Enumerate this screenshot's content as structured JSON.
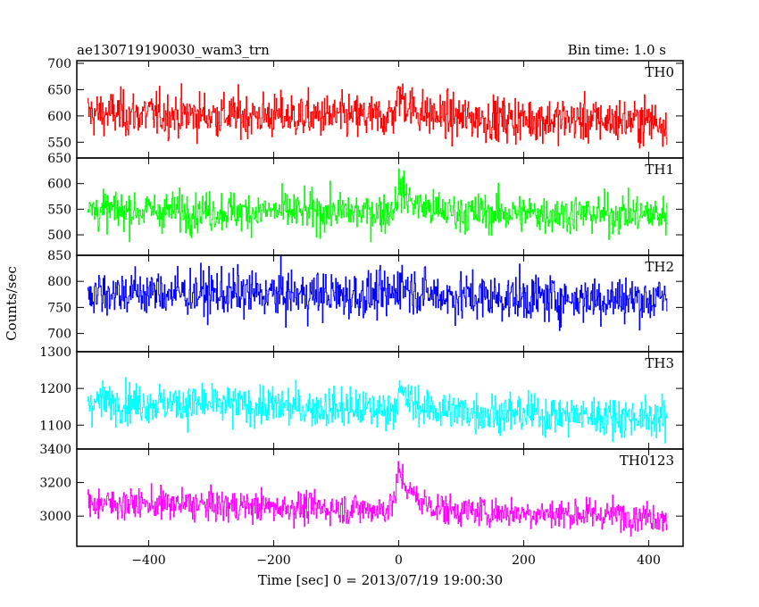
{
  "header": {
    "title": "ae130719190030_wam3_trn",
    "bin_time": "Bin time: 1.0 s"
  },
  "chart_data": {
    "type": "line",
    "title": "ae130719190030_wam3_trn",
    "subtitle": "Bin time: 1.0 s",
    "xlabel": "Time [sec] 0 = 2013/07/19 19:00:30",
    "ylabel": "Counts/sec",
    "xlim": [
      -515,
      455
    ],
    "x_ticks": [
      -400,
      -200,
      0,
      200,
      400
    ],
    "x_start": -498,
    "x_end": 430,
    "bin_size": 1.0,
    "burst_time": 0,
    "panels": [
      {
        "name": "TH0",
        "color": "#ff0000",
        "ylim": [
          520,
          705
        ],
        "y_ticks": [
          550,
          600,
          650,
          700
        ],
        "mean_start": 605,
        "mean_end": 590,
        "noise": 30,
        "peak": 45
      },
      {
        "name": "TH1",
        "color": "#00ff00",
        "ylim": [
          460,
          650
        ],
        "y_ticks": [
          500,
          550,
          600,
          650
        ],
        "mean_start": 548,
        "mean_end": 540,
        "noise": 27,
        "peak": 50
      },
      {
        "name": "TH2",
        "color": "#0000ff",
        "ylim": [
          665,
          850
        ],
        "y_ticks": [
          700,
          750,
          800,
          850
        ],
        "mean_start": 780,
        "mean_end": 765,
        "noise": 32,
        "peak": 30
      },
      {
        "name": "TH3",
        "color": "#00ffff",
        "ylim": [
          1035,
          1300
        ],
        "y_ticks": [
          1100,
          1200,
          1300
        ],
        "mean_start": 1165,
        "mean_end": 1120,
        "noise": 38,
        "peak": 50
      },
      {
        "name": "TH0123",
        "color": "#ff00ff",
        "ylim": [
          2820,
          3400
        ],
        "y_ticks": [
          3000,
          3200,
          3400
        ],
        "mean_start": 3080,
        "mean_end": 3000,
        "noise": 65,
        "peak": 230
      }
    ]
  }
}
